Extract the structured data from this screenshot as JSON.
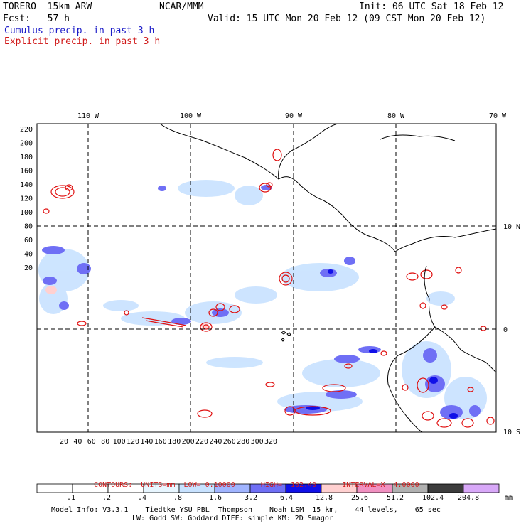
{
  "header": {
    "model": "TORERO  15km ARW",
    "org": "NCAR/MMM",
    "init": "Init: 06 UTC Sat 18 Feb 12",
    "fcst": "Fcst:   57 h",
    "valid": "Valid: 15 UTC Mon 20 Feb 12 (09 CST Mon 20 Feb 12)",
    "cumulus": "Cumulus precip. in past 3 h",
    "explicit": "Explicit precip. in past 3 h"
  },
  "map": {
    "top_lon_labels": [
      "110 W",
      "100 W",
      "90 W",
      "80 W",
      "70 W"
    ],
    "right_lat_labels": [
      "10 N",
      "0",
      "10 S"
    ],
    "left_ticks": [
      "220",
      "200",
      "180",
      "160",
      "140",
      "120",
      "100",
      "80",
      "60",
      "40",
      "20"
    ],
    "bottom_ticks": [
      "20",
      "40",
      "60",
      "80",
      "100",
      "120",
      "140",
      "160",
      "180",
      "200",
      "220",
      "240",
      "260",
      "280",
      "300",
      "320"
    ],
    "cumulus_color": "#4040f0",
    "explicit_color": "#e01010"
  },
  "contours": {
    "units_label": "CONTOURS:  UNITS=mm  LOW= 0.10000",
    "high_label": "HIGH=  102.40",
    "interval_label": "INTERVAL=X  4.0000"
  },
  "colorbar": {
    "labels": [
      ".1",
      ".2",
      ".4",
      ".8",
      "1.6",
      "3.2",
      "6.4",
      "12.8",
      "25.6",
      "51.2",
      "102.4",
      "204.8"
    ],
    "colors": [
      "#ffffff",
      "#ffffff",
      "#ffffff",
      "#e8f6ff",
      "#c8e2ff",
      "#a0b4ff",
      "#6f6ff5",
      "#1010e8",
      "#ffd0d0",
      "#f090c0",
      "#b0b0b0",
      "#3c3c3c",
      "#d8a8f8"
    ],
    "unit": "mm"
  },
  "model_info": {
    "line1": "Model Info: V3.3.1    Tiedtke YSU PBL  Thompson    Noah LSM  15 km,    44 levels,    65 sec",
    "line2": "LW: Godd SW: Goddard DIFF: simple KM: 2D Smagor"
  }
}
